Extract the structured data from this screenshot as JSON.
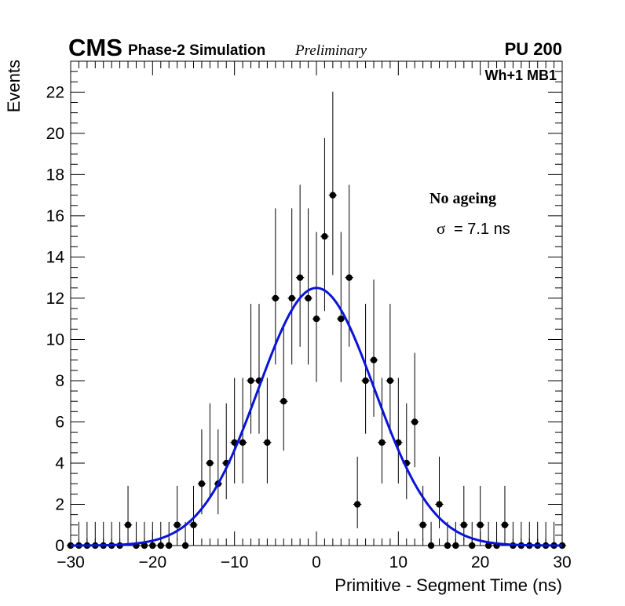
{
  "header": {
    "experiment": "CMS",
    "subtitle": "Phase-2 Simulation",
    "status": "Preliminary",
    "pileup": "PU 200"
  },
  "annotations": {
    "region": "Wh+1 MB1",
    "condition": "No ageing",
    "sigma_symbol": "σ",
    "sigma_text": "= 7.1 ns"
  },
  "colors": {
    "points": "#000000",
    "fit": "#0a14d8",
    "frame": "#000000"
  },
  "chart_data": {
    "type": "scatter",
    "title": "",
    "xlabel": "Primitive - Segment Time (ns)",
    "ylabel": "Events",
    "xlim": [
      -30,
      30
    ],
    "ylim": [
      0,
      23.5
    ],
    "x_ticks": [
      -30,
      -20,
      -10,
      0,
      10,
      20,
      30
    ],
    "x_tick_labels": [
      "−30",
      "−20",
      "−10",
      "0",
      "10",
      "20",
      "30"
    ],
    "y_ticks": [
      0,
      2,
      4,
      6,
      8,
      10,
      12,
      14,
      16,
      18,
      20,
      22
    ],
    "y_tick_labels": [
      "0",
      "2",
      "4",
      "6",
      "8",
      "10",
      "12",
      "14",
      "16",
      "18",
      "20",
      "22"
    ],
    "bin_width": 1,
    "series": [
      {
        "name": "Simulation",
        "style": "points-with-errors",
        "x": [
          -30,
          -29,
          -28,
          -27,
          -26,
          -25,
          -24,
          -23,
          -22,
          -21,
          -20,
          -19,
          -18,
          -17,
          -16,
          -15,
          -14,
          -13,
          -12,
          -11,
          -10,
          -9,
          -8,
          -7,
          -6,
          -5,
          -4,
          -3,
          -2,
          -1,
          0,
          1,
          2,
          3,
          4,
          5,
          6,
          7,
          8,
          9,
          10,
          11,
          12,
          13,
          14,
          15,
          16,
          17,
          18,
          19,
          20,
          21,
          22,
          23,
          24,
          25,
          26,
          27,
          28,
          29,
          30
        ],
        "values": [
          0,
          0,
          0,
          0,
          0,
          0,
          0,
          1,
          0,
          0,
          0,
          0,
          0,
          1,
          0,
          1,
          3,
          4,
          3,
          4,
          5,
          5,
          8,
          8,
          5,
          12,
          7,
          12,
          13,
          12,
          11,
          15,
          17,
          11,
          13,
          2,
          8,
          9,
          5,
          8,
          5,
          4,
          6,
          1,
          0,
          2,
          0,
          0,
          1,
          0,
          1,
          0,
          0,
          1,
          0,
          0,
          0,
          0,
          0,
          0,
          0
        ]
      },
      {
        "name": "Gaussian fit",
        "style": "line",
        "amplitude": 12.5,
        "mean": 0.0,
        "sigma": 7.1
      }
    ]
  }
}
